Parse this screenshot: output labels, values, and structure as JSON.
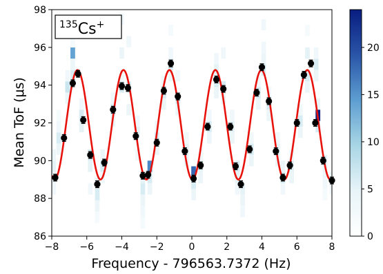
{
  "chart_data": {
    "type": "scatter",
    "xlabel": "Frequency - 796563.7372 (Hz)",
    "ylabel": "Mean ToF (μs)",
    "annotation": {
      "mass_number": "135",
      "element": "Cs",
      "charge": "+"
    },
    "xlim": [
      -8,
      8
    ],
    "ylim": [
      86,
      98
    ],
    "x_ticks": [
      -8,
      -6,
      -4,
      -2,
      0,
      2,
      4,
      6,
      8
    ],
    "x_tick_labels": [
      "−8",
      "−6",
      "−4",
      "−2",
      "0",
      "2",
      "4",
      "6",
      "8"
    ],
    "y_ticks": [
      86,
      88,
      90,
      92,
      94,
      96,
      98
    ],
    "y_tick_labels": [
      "86",
      "88",
      "90",
      "92",
      "94",
      "96",
      "98"
    ],
    "grid": false,
    "colorbar": {
      "range": [
        0,
        24
      ],
      "ticks": [
        0,
        5,
        10,
        15,
        20
      ],
      "tick_labels": [
        "0",
        "5",
        "10",
        "15",
        "20"
      ],
      "colors": [
        "#ffffff",
        "#e8f4f8",
        "#a9d6e5",
        "#5d9ed1",
        "#2a55a8",
        "#081d80"
      ]
    },
    "fit_curve": {
      "color": "#e8120c",
      "form": "sinusoid",
      "offset": 91.9,
      "amplitude": 2.9,
      "period": 2.625,
      "phase_x_of_peak": -6.53
    },
    "histogram": {
      "x_bin_width": 0.2667,
      "y_bin_height": 0.6,
      "bin_counts": [
        [
          -7.9,
          89.1,
          4
        ],
        [
          -7.9,
          89.7,
          5
        ],
        [
          -7.9,
          90.3,
          4
        ],
        [
          -7.9,
          88.5,
          3
        ],
        [
          -7.6,
          91.2,
          6
        ],
        [
          -7.6,
          90.6,
          4
        ],
        [
          -7.6,
          91.8,
          3
        ],
        [
          -7.6,
          92.4,
          2
        ],
        [
          -7.1,
          93.9,
          7
        ],
        [
          -7.1,
          93.3,
          4
        ],
        [
          -7.1,
          94.5,
          3
        ],
        [
          -6.8,
          94.5,
          6
        ],
        [
          -6.8,
          95.7,
          14
        ],
        [
          -6.8,
          95.1,
          4
        ],
        [
          -6.8,
          96.3,
          2
        ],
        [
          -6.3,
          92.4,
          6
        ],
        [
          -6.3,
          91.8,
          5
        ],
        [
          -6.3,
          93.0,
          3
        ],
        [
          -5.8,
          90.3,
          6
        ],
        [
          -5.8,
          89.7,
          5
        ],
        [
          -5.8,
          88.5,
          3
        ],
        [
          -5.4,
          88.8,
          5
        ],
        [
          -5.4,
          88.2,
          6
        ],
        [
          -5.4,
          87.6,
          4
        ],
        [
          -5.4,
          87.0,
          2
        ],
        [
          -5.1,
          89.7,
          6
        ],
        [
          -5.1,
          90.3,
          4
        ],
        [
          -5.1,
          89.1,
          3
        ],
        [
          -4.5,
          92.7,
          6
        ],
        [
          -4.5,
          92.1,
          4
        ],
        [
          -4.5,
          93.3,
          3
        ],
        [
          -4.0,
          93.9,
          6
        ],
        [
          -4.0,
          95.7,
          4
        ],
        [
          -4.0,
          97.5,
          3
        ],
        [
          -4.0,
          94.5,
          3
        ],
        [
          -3.6,
          93.9,
          6
        ],
        [
          -3.6,
          92.7,
          4
        ],
        [
          -3.6,
          96.3,
          3
        ],
        [
          -3.1,
          91.5,
          5
        ],
        [
          -3.1,
          90.3,
          3
        ],
        [
          -3.1,
          92.1,
          3
        ],
        [
          -2.8,
          89.1,
          5
        ],
        [
          -2.8,
          88.5,
          6
        ],
        [
          -2.8,
          87.9,
          4
        ],
        [
          -2.8,
          87.3,
          3
        ],
        [
          -2.8,
          86.7,
          2
        ],
        [
          -2.4,
          89.7,
          16
        ],
        [
          -2.4,
          89.1,
          6
        ],
        [
          -2.4,
          88.5,
          4
        ],
        [
          -2.0,
          91.2,
          6
        ],
        [
          -2.0,
          90.6,
          4
        ],
        [
          -2.0,
          91.8,
          3
        ],
        [
          -1.6,
          93.6,
          6
        ],
        [
          -1.6,
          93.0,
          4
        ],
        [
          -1.6,
          94.2,
          3
        ],
        [
          -1.2,
          95.1,
          6
        ],
        [
          -1.2,
          94.5,
          4
        ],
        [
          -1.2,
          95.7,
          3
        ],
        [
          -1.2,
          96.9,
          2
        ],
        [
          -0.8,
          93.3,
          6
        ],
        [
          -0.8,
          92.7,
          4
        ],
        [
          -0.8,
          94.5,
          3
        ],
        [
          -0.3,
          90.6,
          5
        ],
        [
          -0.3,
          90.0,
          4
        ],
        [
          -0.3,
          91.2,
          3
        ],
        [
          0.1,
          89.4,
          18
        ],
        [
          0.1,
          88.8,
          6
        ],
        [
          0.1,
          88.2,
          4
        ],
        [
          0.5,
          89.7,
          5
        ],
        [
          0.5,
          89.1,
          4
        ],
        [
          0.5,
          90.3,
          3
        ],
        [
          1.0,
          91.8,
          6
        ],
        [
          1.0,
          91.2,
          4
        ],
        [
          1.0,
          92.4,
          3
        ],
        [
          1.4,
          94.2,
          6
        ],
        [
          1.4,
          93.6,
          4
        ],
        [
          1.4,
          94.8,
          5
        ],
        [
          1.4,
          95.4,
          3
        ],
        [
          1.8,
          93.9,
          6
        ],
        [
          1.8,
          93.3,
          4
        ],
        [
          1.8,
          95.7,
          3
        ],
        [
          2.3,
          91.8,
          5
        ],
        [
          2.3,
          91.2,
          4
        ],
        [
          2.3,
          92.4,
          3
        ],
        [
          2.6,
          89.7,
          6
        ],
        [
          2.6,
          89.1,
          5
        ],
        [
          2.6,
          88.5,
          3
        ],
        [
          2.9,
          88.5,
          5
        ],
        [
          2.9,
          87.9,
          4
        ],
        [
          2.9,
          87.3,
          3
        ],
        [
          3.4,
          90.6,
          6
        ],
        [
          3.4,
          90.0,
          4
        ],
        [
          3.4,
          91.2,
          3
        ],
        [
          3.8,
          93.6,
          6
        ],
        [
          3.8,
          93.0,
          4
        ],
        [
          3.8,
          94.2,
          3
        ],
        [
          4.1,
          94.8,
          6
        ],
        [
          4.1,
          95.4,
          4
        ],
        [
          4.1,
          97.2,
          3
        ],
        [
          4.1,
          96.0,
          3
        ],
        [
          4.4,
          93.0,
          6
        ],
        [
          4.4,
          92.4,
          4
        ],
        [
          4.4,
          93.6,
          3
        ],
        [
          4.9,
          90.6,
          5
        ],
        [
          4.9,
          90.0,
          4
        ],
        [
          4.9,
          91.2,
          3
        ],
        [
          5.2,
          89.1,
          6
        ],
        [
          5.2,
          89.7,
          4
        ],
        [
          5.2,
          88.5,
          3
        ],
        [
          5.7,
          89.7,
          5
        ],
        [
          5.7,
          89.1,
          4
        ],
        [
          5.7,
          90.3,
          3
        ],
        [
          6.2,
          92.1,
          6
        ],
        [
          6.2,
          91.5,
          4
        ],
        [
          6.2,
          92.7,
          3
        ],
        [
          6.6,
          94.5,
          6
        ],
        [
          6.6,
          95.7,
          5
        ],
        [
          6.6,
          93.9,
          4
        ],
        [
          6.6,
          96.9,
          2
        ],
        [
          7.1,
          95.1,
          6
        ],
        [
          7.1,
          94.5,
          4
        ],
        [
          7.1,
          95.7,
          3
        ],
        [
          7.2,
          92.4,
          24
        ],
        [
          7.2,
          91.8,
          6
        ],
        [
          7.2,
          93.0,
          4
        ],
        [
          7.6,
          90.0,
          5
        ],
        [
          7.6,
          89.4,
          4
        ],
        [
          7.6,
          88.8,
          3
        ],
        [
          7.6,
          88.2,
          2
        ],
        [
          8.0,
          89.1,
          4
        ],
        [
          8.0,
          88.5,
          3
        ]
      ]
    },
    "points": [
      {
        "x": -7.8,
        "y": 89.1,
        "err": 0.18
      },
      {
        "x": -7.3,
        "y": 91.2,
        "err": 0.18
      },
      {
        "x": -6.8,
        "y": 94.1,
        "err": 0.18
      },
      {
        "x": -6.5,
        "y": 94.6,
        "err": 0.18
      },
      {
        "x": -6.2,
        "y": 92.15,
        "err": 0.18
      },
      {
        "x": -5.8,
        "y": 90.3,
        "err": 0.18
      },
      {
        "x": -5.4,
        "y": 88.75,
        "err": 0.18
      },
      {
        "x": -5.0,
        "y": 89.9,
        "err": 0.18
      },
      {
        "x": -4.5,
        "y": 92.7,
        "err": 0.18
      },
      {
        "x": -4.0,
        "y": 93.95,
        "err": 0.18
      },
      {
        "x": -3.65,
        "y": 93.85,
        "err": 0.18
      },
      {
        "x": -3.2,
        "y": 91.3,
        "err": 0.18
      },
      {
        "x": -2.8,
        "y": 89.2,
        "err": 0.18
      },
      {
        "x": -2.5,
        "y": 89.25,
        "err": 0.18
      },
      {
        "x": -2.0,
        "y": 90.95,
        "err": 0.18
      },
      {
        "x": -1.6,
        "y": 93.7,
        "err": 0.18
      },
      {
        "x": -1.2,
        "y": 95.15,
        "err": 0.18
      },
      {
        "x": -0.8,
        "y": 93.4,
        "err": 0.18
      },
      {
        "x": -0.4,
        "y": 90.5,
        "err": 0.18
      },
      {
        "x": 0.1,
        "y": 89.05,
        "err": 0.18
      },
      {
        "x": 0.5,
        "y": 89.75,
        "err": 0.18
      },
      {
        "x": 0.9,
        "y": 91.8,
        "err": 0.18
      },
      {
        "x": 1.4,
        "y": 94.3,
        "err": 0.18
      },
      {
        "x": 1.8,
        "y": 93.8,
        "err": 0.18
      },
      {
        "x": 2.2,
        "y": 91.8,
        "err": 0.18
      },
      {
        "x": 2.5,
        "y": 89.7,
        "err": 0.18
      },
      {
        "x": 2.8,
        "y": 88.75,
        "err": 0.18
      },
      {
        "x": 3.3,
        "y": 90.6,
        "err": 0.18
      },
      {
        "x": 3.7,
        "y": 93.6,
        "err": 0.18
      },
      {
        "x": 4.0,
        "y": 94.95,
        "err": 0.18
      },
      {
        "x": 4.4,
        "y": 93.15,
        "err": 0.18
      },
      {
        "x": 4.8,
        "y": 90.5,
        "err": 0.18
      },
      {
        "x": 5.2,
        "y": 89.1,
        "err": 0.18
      },
      {
        "x": 5.6,
        "y": 89.75,
        "err": 0.18
      },
      {
        "x": 6.0,
        "y": 92.0,
        "err": 0.18
      },
      {
        "x": 6.4,
        "y": 94.55,
        "err": 0.18
      },
      {
        "x": 6.8,
        "y": 95.15,
        "err": 0.18
      },
      {
        "x": 7.05,
        "y": 92.0,
        "err": 0.18
      },
      {
        "x": 7.5,
        "y": 90.0,
        "err": 0.18
      },
      {
        "x": 8.0,
        "y": 88.95,
        "err": 0.18
      }
    ]
  }
}
